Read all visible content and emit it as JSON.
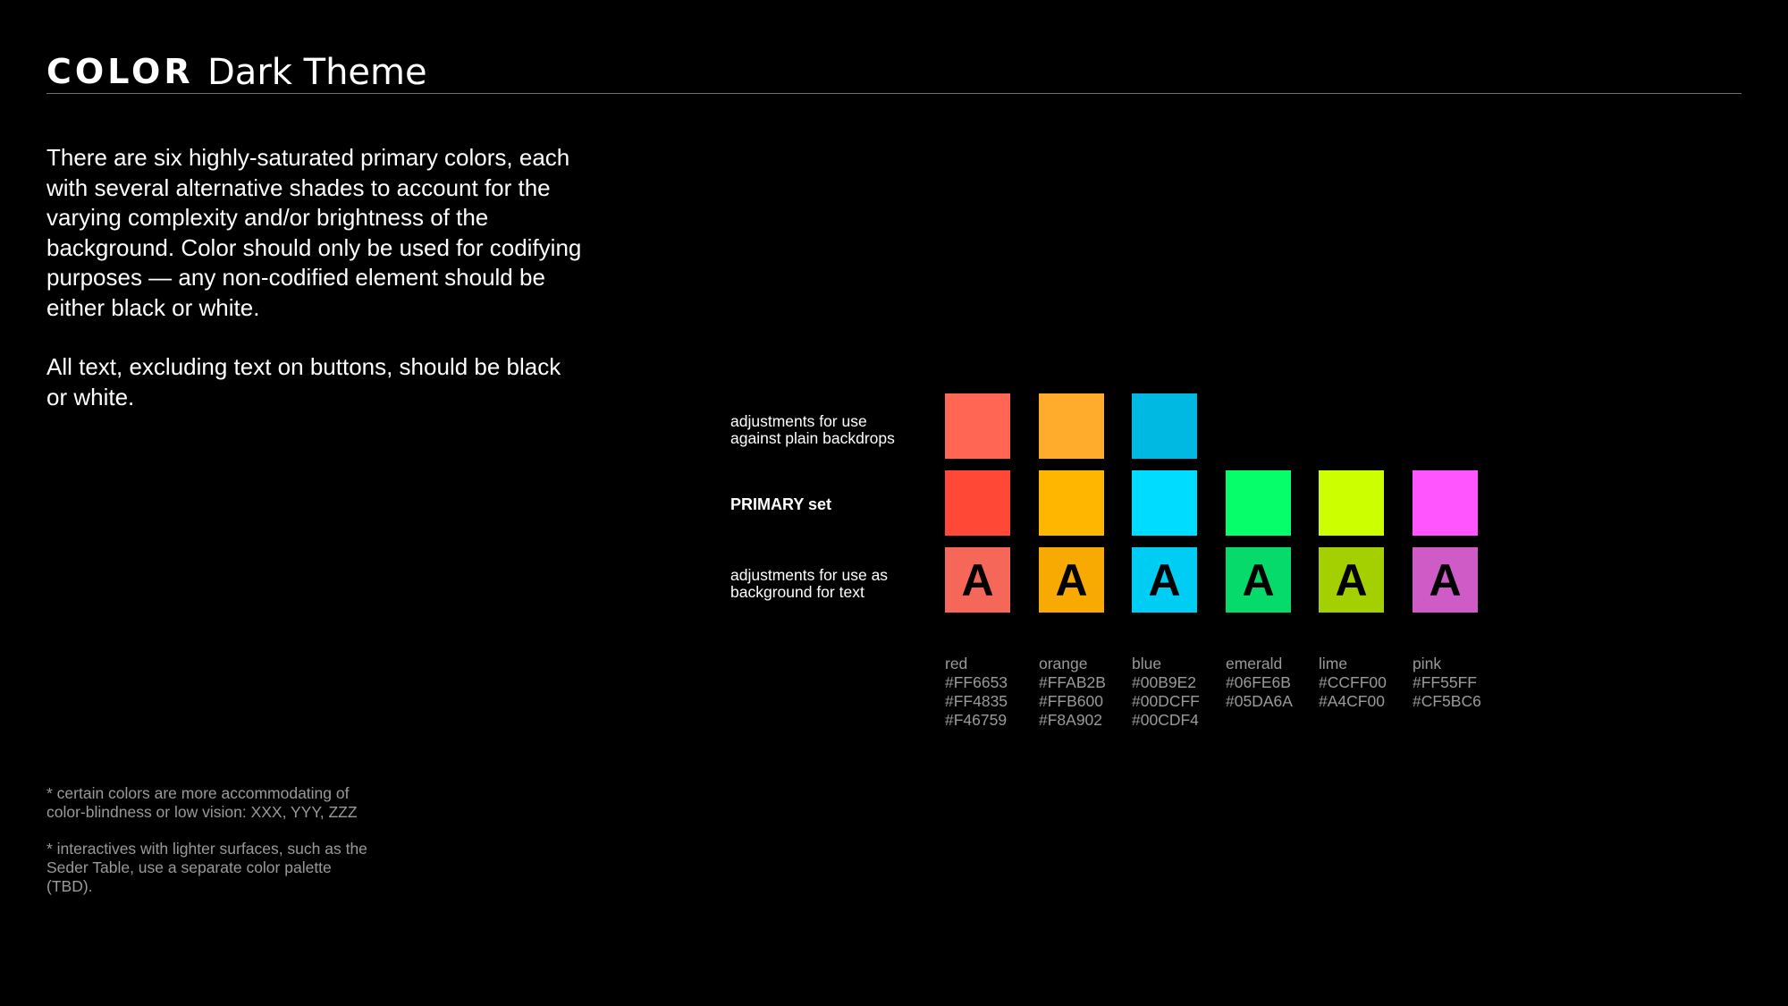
{
  "header": {
    "title_strong": "COLOR",
    "title_light": "Dark Theme"
  },
  "intro": {
    "paragraph1": "There are six highly-saturated primary colors, each with several alternative shades to account for the varying complexity and/or brightness of the background. Color should only be used for codifying purposes — any non-codified element should be either black or white.",
    "paragraph2": "All text, excluding text on buttons, should be black or white."
  },
  "rows": {
    "plain_label_line1": "adjustments for use",
    "plain_label_line2": "against plain backdrops",
    "primary_label": "PRIMARY set",
    "text_label_line1": "adjustments for use as",
    "text_label_line2": "background for text"
  },
  "swatch_glyph": "A",
  "colors": [
    {
      "name": "red",
      "plain": "#FF6653",
      "primary": "#FF4835",
      "text_bg": "#F46759"
    },
    {
      "name": "orange",
      "plain": "#FFAB2B",
      "primary": "#FFB600",
      "text_bg": "#F8A902"
    },
    {
      "name": "blue",
      "plain": "#00B9E2",
      "primary": "#00DCFF",
      "text_bg": "#00CDF4"
    },
    {
      "name": "emerald",
      "plain": null,
      "primary": "#06FE6B",
      "text_bg": "#05DA6A"
    },
    {
      "name": "lime",
      "plain": null,
      "primary": "#CCFF00",
      "text_bg": "#A4CF00"
    },
    {
      "name": "pink",
      "plain": null,
      "primary": "#FF55FF",
      "text_bg": "#CF5BC6"
    }
  ],
  "notes": {
    "note1": "* certain colors are more accommodating of color-blindness or low vision: XXX, YYY, ZZZ",
    "note2": "* interactives with lighter surfaces, such as the Seder Table, use a separate color palette (TBD)."
  }
}
